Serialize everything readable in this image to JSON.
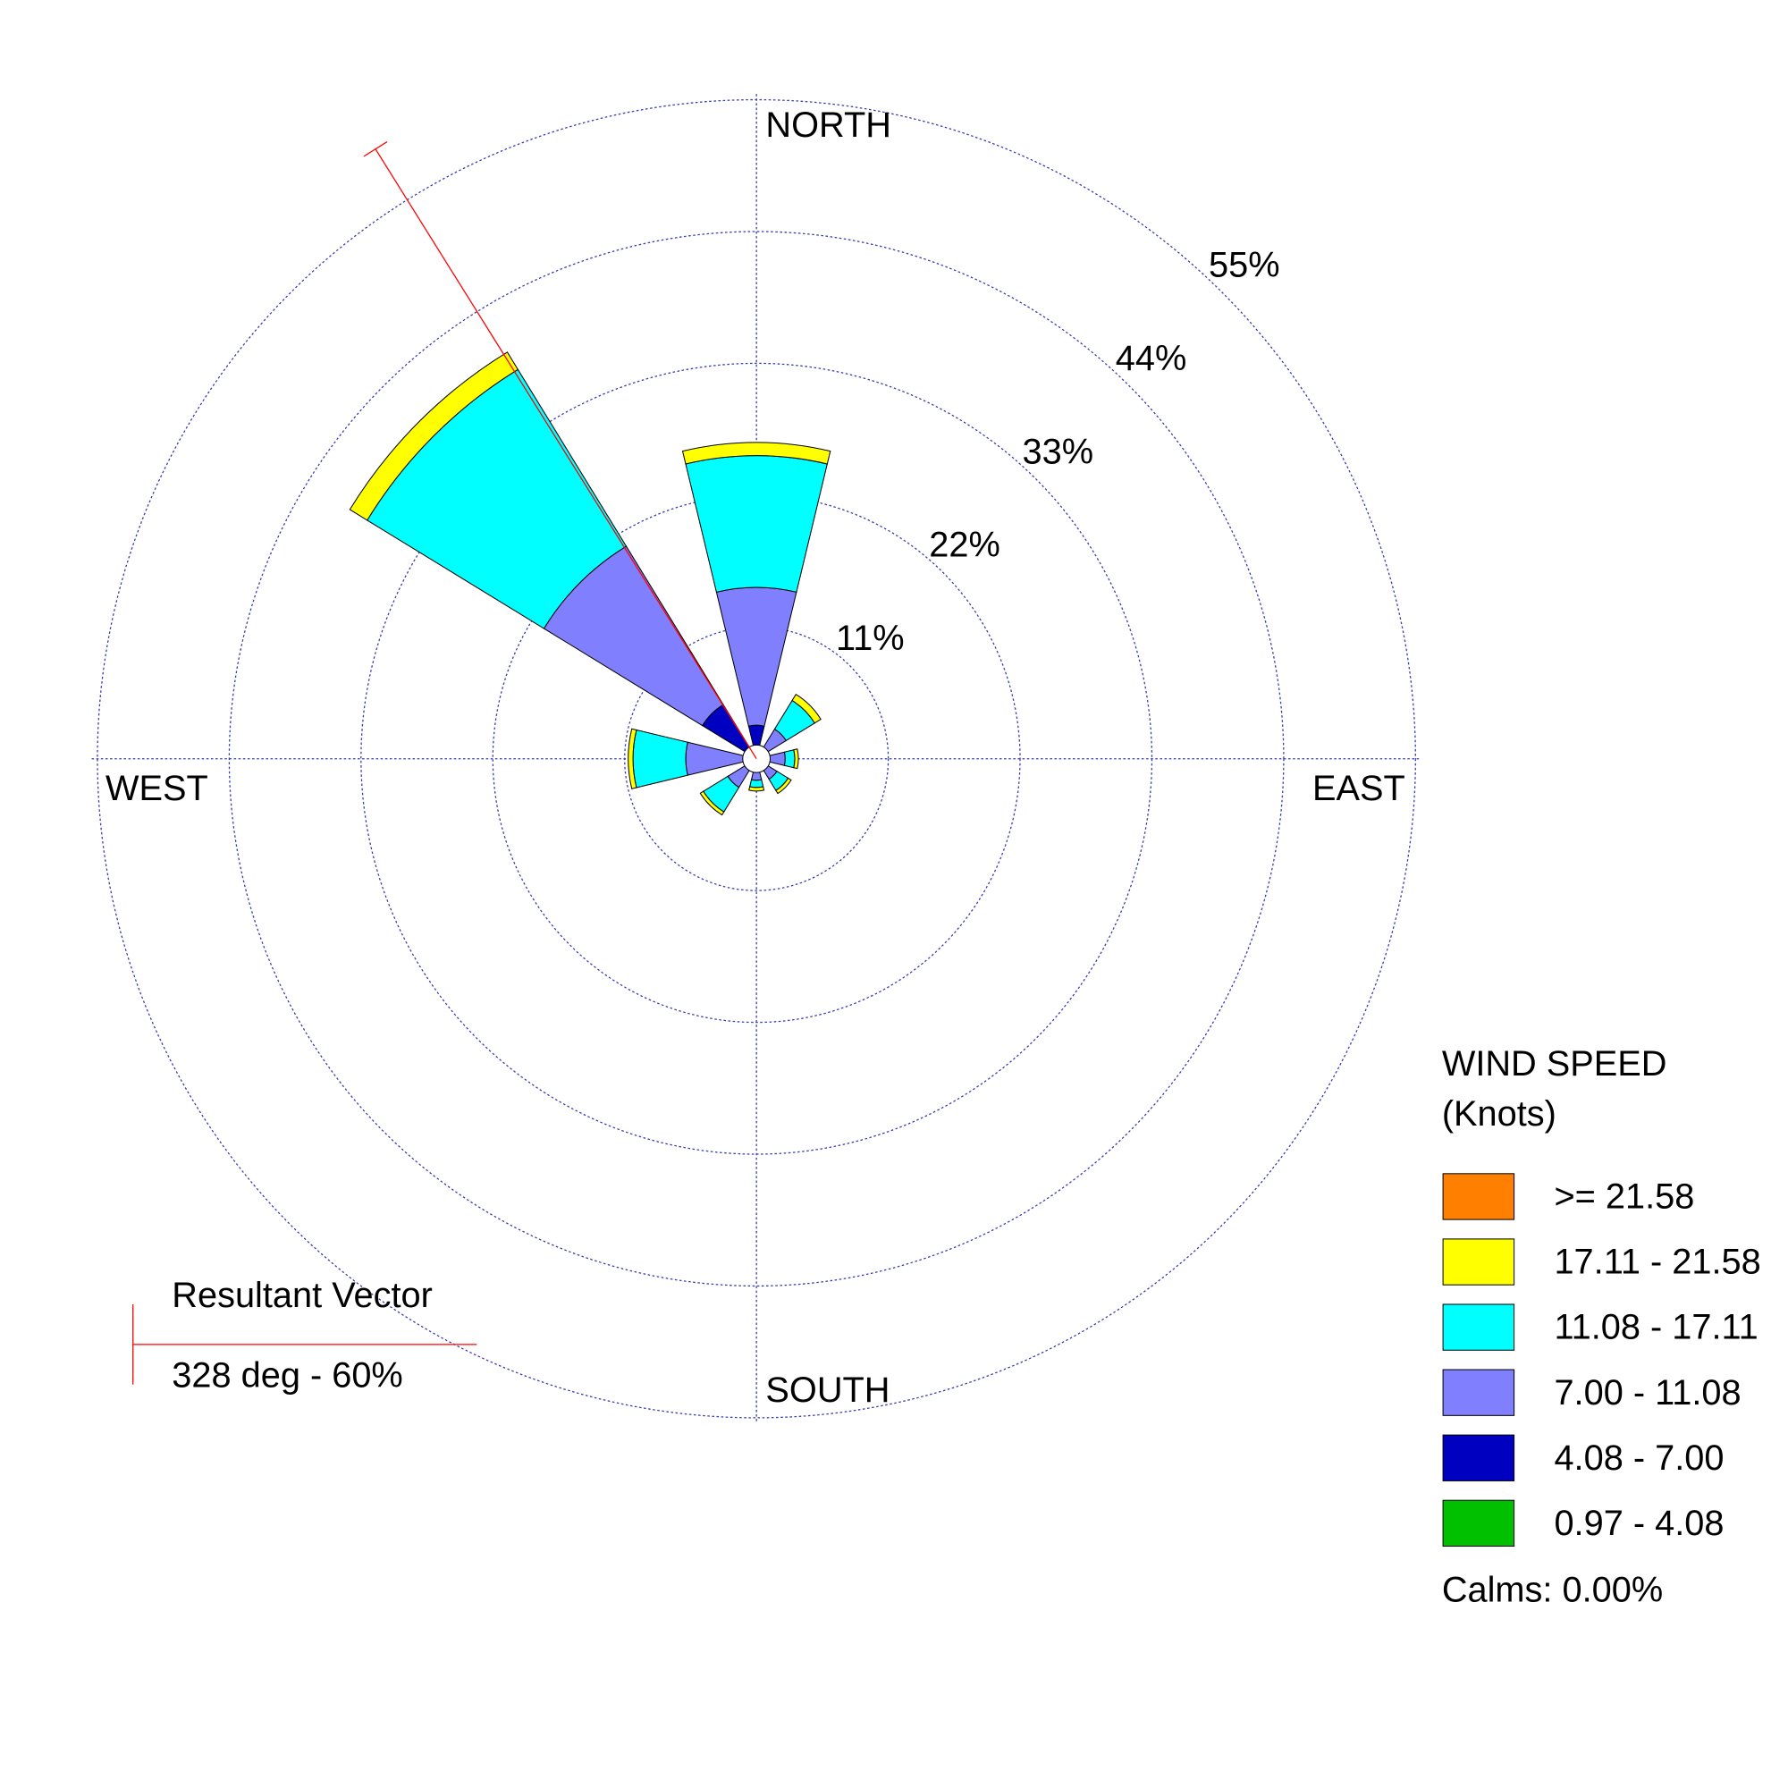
{
  "chart_data": {
    "type": "windrose",
    "directions": [
      0,
      45,
      90,
      135,
      180,
      225,
      270,
      315
    ],
    "compass_labels": [
      "NORTH",
      "EAST",
      "SOUTH",
      "WEST"
    ],
    "rlim": [
      0,
      55
    ],
    "rticks": [
      {
        "value": 11,
        "label": "11%"
      },
      {
        "value": 22,
        "label": "22%"
      },
      {
        "value": 33,
        "label": "33%"
      },
      {
        "value": 44,
        "label": "44%"
      },
      {
        "value": 55,
        "label": "55%"
      }
    ],
    "grid": true,
    "legend_title": [
      "WIND SPEED",
      "(Knots)"
    ],
    "series": [
      {
        "name": "0.97 - 4.08",
        "color": "#00c000",
        "values": [
          0,
          0,
          0,
          0,
          0,
          0,
          0,
          0
        ]
      },
      {
        "name": "4.08 - 7.00",
        "color": "#0000c0",
        "values": [
          2.8,
          0.5,
          0.5,
          0.5,
          0.5,
          0.5,
          0.5,
          5.3
        ]
      },
      {
        "name": "7.00 - 11.08",
        "color": "#8080ff",
        "values": [
          11.5,
          2.4,
          1.9,
          1.5,
          1.3,
          2.3,
          5.4,
          15.5
        ]
      },
      {
        "name": "11.08 - 17.11",
        "color": "#00ffff",
        "values": [
          11,
          2.8,
          0.8,
          1.1,
          0.6,
          2.4,
          4.4,
          17.3
        ]
      },
      {
        "name": "17.11 - 21.58",
        "color": "#ffff00",
        "values": [
          1.1,
          0.6,
          0.3,
          0.3,
          0.3,
          0.3,
          0.4,
          1.7
        ]
      },
      {
        "name": ">= 21.58",
        "color": "#ff8000",
        "values": [
          0,
          0,
          0,
          0,
          0,
          0,
          0,
          0
        ]
      }
    ],
    "calms": {
      "value": 0,
      "label": "Calms: 0.00%"
    },
    "resultant": {
      "title": "Resultant Vector",
      "direction": 328,
      "magnitude": 60,
      "label": "328 deg - 60%",
      "color": "#ff0000"
    }
  }
}
